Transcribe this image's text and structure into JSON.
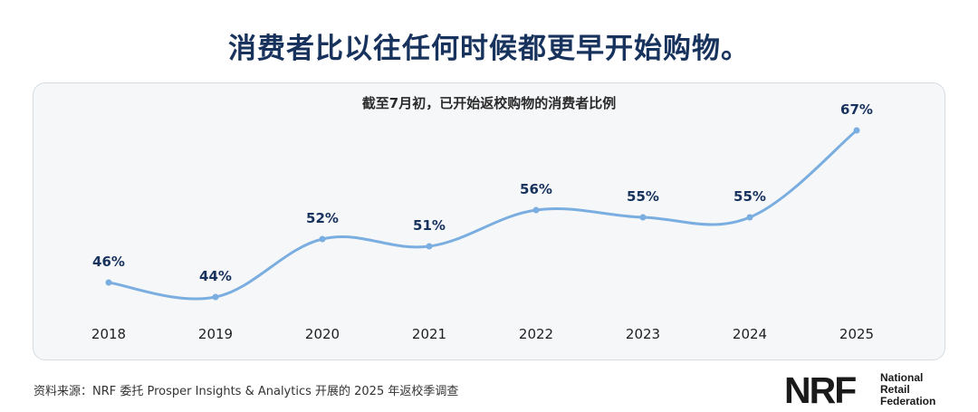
{
  "headline": "消费者比以往任何时候都更早开始购物。",
  "source": "资料来源：NRF 委托 Prosper Insights & Analytics 开展的 2025 年返校季调查",
  "logo": {
    "mark": "NRF",
    "lines": [
      "National",
      "Retail",
      "Federation"
    ]
  },
  "colors": {
    "headline": "#17325c",
    "line": "#7aaee0",
    "point": "#7aaee0",
    "label": "#17325c"
  },
  "chart_data": {
    "type": "line",
    "title": "截至7月初，已开始返校购物的消费者比例",
    "categories": [
      "2018",
      "2019",
      "2020",
      "2021",
      "2022",
      "2023",
      "2024",
      "2025"
    ],
    "values": [
      46,
      44,
      52,
      51,
      56,
      55,
      55,
      67
    ],
    "value_labels": [
      "46%",
      "44%",
      "52%",
      "51%",
      "56%",
      "55%",
      "55%",
      "67%"
    ],
    "unit": "%",
    "grid": false,
    "legend": "none",
    "ylim": [
      40,
      70
    ]
  }
}
